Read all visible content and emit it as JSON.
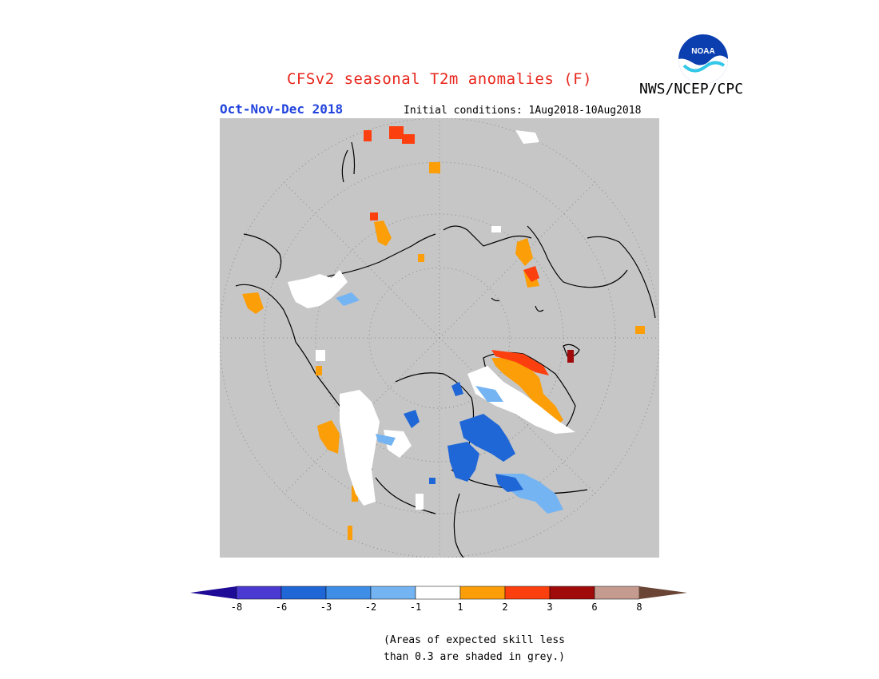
{
  "header": {
    "title": "CFSv2 seasonal T2m anomalies (F)",
    "agency": "NWS/NCEP/CPC",
    "season": "Oct-Nov-Dec 2018",
    "initial_conditions": "Initial conditions: 1Aug2018-10Aug2018",
    "logo_text": "NOAA",
    "logo_icon": "noaa-logo-icon"
  },
  "colors": {
    "grey_mask": "#c6c6c6",
    "coast": "#000000",
    "bin_m8": "#1e0b96",
    "bin_m6": "#4a3ad1",
    "bin_m3": "#1f66d6",
    "bin_m2": "#3e8ee8",
    "bin_m1": "#75b4f2",
    "bin_0": "#ffffff",
    "bin_p1": "#fb9e08",
    "bin_p2": "#fc3f0e",
    "bin_p3": "#e3140f",
    "bin_p6": "#a10a0a",
    "bin_p8": "#c49b8e",
    "bin_gt8": "#6a4535"
  },
  "legend": {
    "ticks": [
      "-8",
      "-6",
      "-3",
      "-2",
      "-1",
      "1",
      "2",
      "3",
      "6",
      "8"
    ],
    "note_line1": "(Areas of expected skill less",
    "note_line2": "than 0.3 are shaded in grey.)"
  }
}
